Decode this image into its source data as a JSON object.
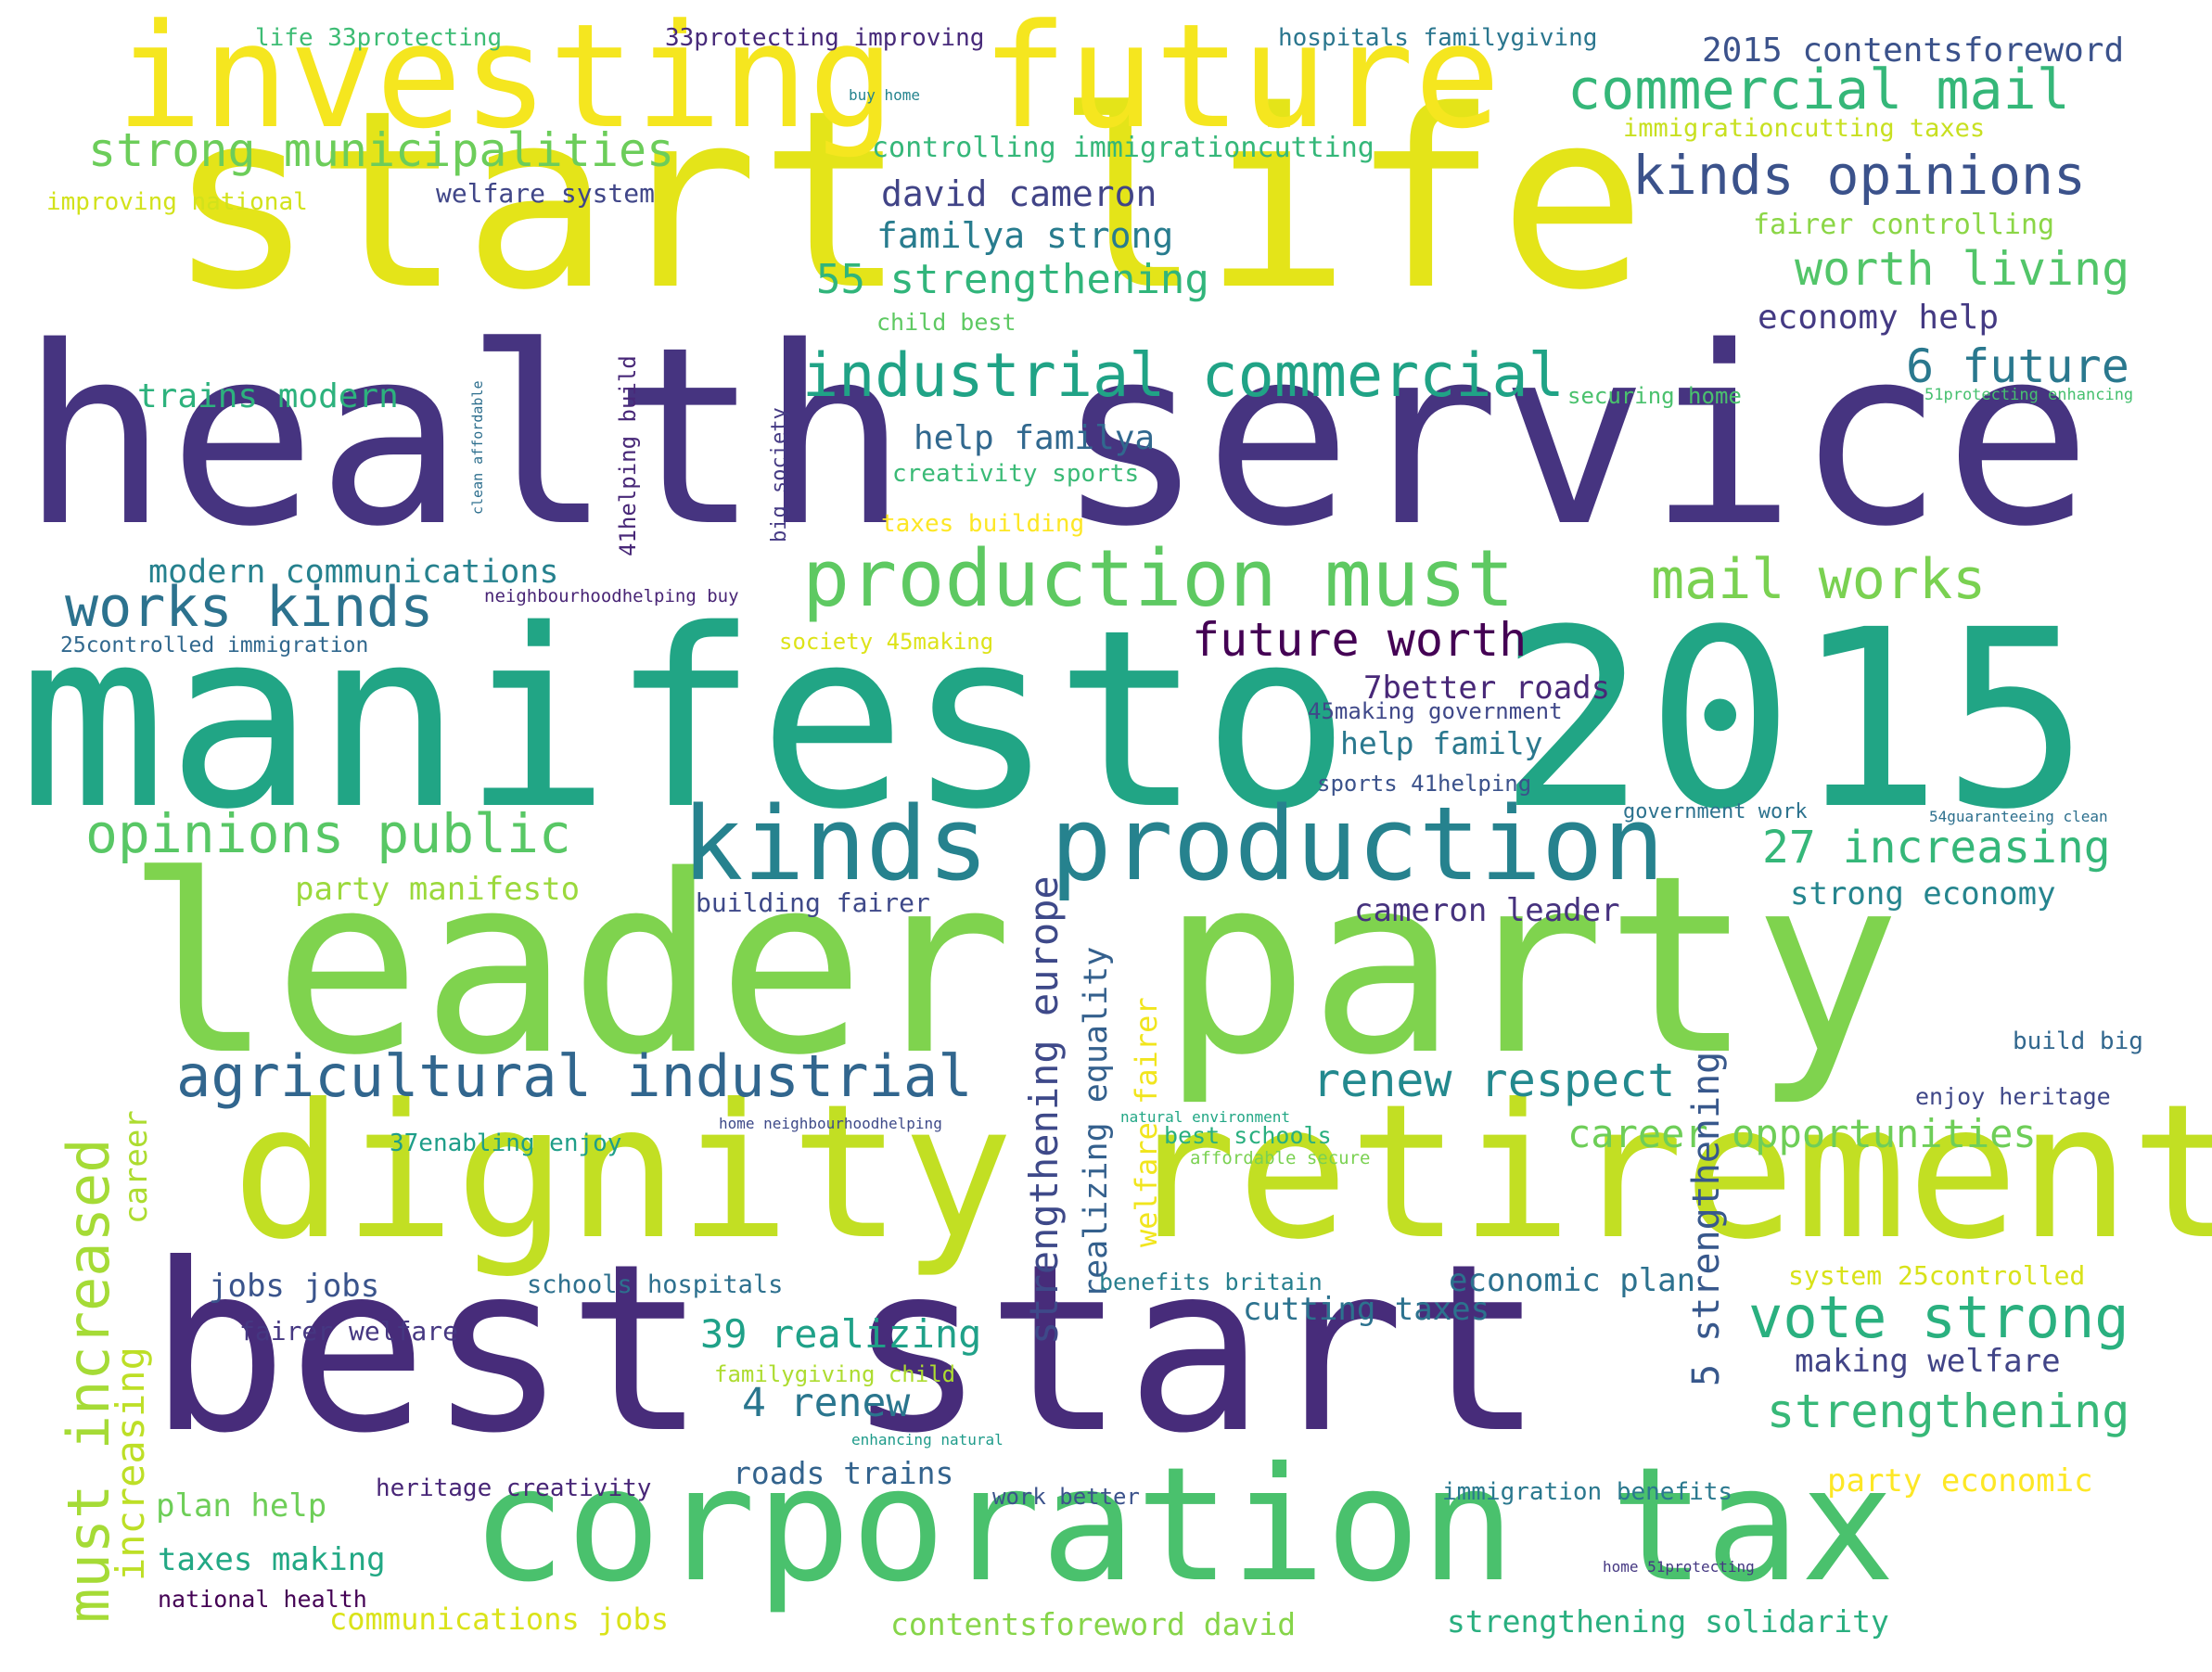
{
  "words": [
    {
      "text": "start life",
      "color": "#e4e419"
    },
    {
      "text": "health service",
      "color": "#463480"
    },
    {
      "text": "manifesto 2015",
      "color": "#21a585"
    },
    {
      "text": "leader party",
      "color": "#7fd34e"
    },
    {
      "text": "investing future",
      "color": "#f5e61f"
    },
    {
      "text": "best start",
      "color": "#472c7a"
    },
    {
      "text": "dignity retirement",
      "color": "#c2df23"
    },
    {
      "text": "corporation tax",
      "color": "#4ac16d"
    },
    {
      "text": "production must",
      "color": "#5ec962"
    },
    {
      "text": "kinds production",
      "color": "#26828e"
    },
    {
      "text": "industrial commercial",
      "color": "#20a386"
    },
    {
      "text": "agricultural industrial",
      "color": "#31668e"
    },
    {
      "text": "commercial mail",
      "color": "#35b779"
    },
    {
      "text": "strong municipalities",
      "color": "#6ccd5a"
    },
    {
      "text": "kinds opinions",
      "color": "#3b528b"
    },
    {
      "text": "opinions public",
      "color": "#58c765"
    },
    {
      "text": "works kinds",
      "color": "#2c728e"
    },
    {
      "text": "mail works",
      "color": "#7ad151"
    },
    {
      "text": "vote strong",
      "color": "#2ab07f"
    },
    {
      "text": "must increased",
      "color": "#a5db36"
    },
    {
      "text": "worth living",
      "color": "#52c569"
    },
    {
      "text": "renew respect",
      "color": "#23898e"
    },
    {
      "text": "future worth",
      "color": "#440154"
    },
    {
      "text": "27 increasing",
      "color": "#35b779"
    },
    {
      "text": "6 future",
      "color": "#2a788e"
    },
    {
      "text": "strengthening",
      "color": "#37b878"
    },
    {
      "text": "55 strengthening",
      "color": "#31b57b"
    },
    {
      "text": "career opportunities",
      "color": "#6ece58"
    },
    {
      "text": "39 realizing",
      "color": "#1fa188"
    },
    {
      "text": "4 renew",
      "color": "#2a768e"
    },
    {
      "text": "5 strengthening",
      "color": "#38588c"
    },
    {
      "text": "increasing",
      "color": "#bddf26"
    },
    {
      "text": "strengthening europe",
      "color": "#3e4989"
    },
    {
      "text": "realizing equality",
      "color": "#34608d"
    },
    {
      "text": "welfare fairer",
      "color": "#f1e51d"
    },
    {
      "text": "david cameron",
      "color": "#414487"
    },
    {
      "text": "familya strong",
      "color": "#287c8e"
    },
    {
      "text": "2015 contentsforeword",
      "color": "#3b528b"
    },
    {
      "text": "economy help",
      "color": "#443a83"
    },
    {
      "text": "help familya",
      "color": "#31688e"
    },
    {
      "text": "trains modern",
      "color": "#2db27d"
    },
    {
      "text": "modern communications",
      "color": "#26818e"
    },
    {
      "text": "7better roads",
      "color": "#482878"
    },
    {
      "text": "help family",
      "color": "#2a788e"
    },
    {
      "text": "party manifesto",
      "color": "#9bd93c"
    },
    {
      "text": "cameron leader",
      "color": "#46327e"
    },
    {
      "text": "strong economy",
      "color": "#25858e"
    },
    {
      "text": "career",
      "color": "#addc30"
    },
    {
      "text": "jobs jobs",
      "color": "#3a548c"
    },
    {
      "text": "cutting taxes",
      "color": "#2c728e"
    },
    {
      "text": "economic plan",
      "color": "#2c718e"
    },
    {
      "text": "making welfare",
      "color": "#414487"
    },
    {
      "text": "plan help",
      "color": "#6ece58"
    },
    {
      "text": "taxes making",
      "color": "#22a884"
    },
    {
      "text": "party economic",
      "color": "#fde725"
    },
    {
      "text": "communications jobs",
      "color": "#dae319"
    },
    {
      "text": "contentsforeword david",
      "color": "#86d549"
    },
    {
      "text": "strengthening solidarity",
      "color": "#29af7f"
    },
    {
      "text": "roads trains",
      "color": "#33638d"
    },
    {
      "text": "fairer welfare",
      "color": "#453781"
    },
    {
      "text": "national health",
      "color": "#440154"
    },
    {
      "text": "system 25controlled",
      "color": "#d8e219"
    },
    {
      "text": "fairer controlling",
      "color": "#8bd646"
    },
    {
      "text": "controlling immigrationcutting",
      "color": "#35b779"
    },
    {
      "text": "welfare system",
      "color": "#404688"
    },
    {
      "text": "immigrationcutting taxes",
      "color": "#c8e020"
    },
    {
      "text": "hospitals familygiving",
      "color": "#2a768e"
    },
    {
      "text": "life 33protecting",
      "color": "#3dbc74"
    },
    {
      "text": "33protecting improving",
      "color": "#472a7a"
    },
    {
      "text": "improving national",
      "color": "#d2e21b"
    },
    {
      "text": "child best",
      "color": "#5ec962"
    },
    {
      "text": "securing home",
      "color": "#4ac16d"
    },
    {
      "text": "51protecting enhancing",
      "color": "#46c06f"
    },
    {
      "text": "creativity sports",
      "color": "#3aba76"
    },
    {
      "text": "taxes building",
      "color": "#fde725"
    },
    {
      "text": "society 45making",
      "color": "#dde318"
    },
    {
      "text": "25controlled immigration",
      "color": "#31688e"
    },
    {
      "text": "neighbourhoodhelping buy",
      "color": "#482475"
    },
    {
      "text": "45making government",
      "color": "#3f4889"
    },
    {
      "text": "sports 41helping",
      "color": "#3b528b"
    },
    {
      "text": "government work",
      "color": "#2c728e"
    },
    {
      "text": "54guaranteeing clean",
      "color": "#2d708e"
    },
    {
      "text": "building fairer",
      "color": "#3e4989"
    },
    {
      "text": "schools hospitals",
      "color": "#2d708e"
    },
    {
      "text": "benefits britain",
      "color": "#277f8e"
    },
    {
      "text": "familygiving child",
      "color": "#addc30"
    },
    {
      "text": "heritage creativity",
      "color": "#482677"
    },
    {
      "text": "work better",
      "color": "#3b528b"
    },
    {
      "text": "immigration benefits",
      "color": "#2a788e"
    },
    {
      "text": "enhancing natural",
      "color": "#1e9b8a"
    },
    {
      "text": "home 51protecting",
      "color": "#453882"
    },
    {
      "text": "build big",
      "color": "#31678e"
    },
    {
      "text": "enjoy heritage",
      "color": "#3f4788"
    },
    {
      "text": "natural environment",
      "color": "#22a785"
    },
    {
      "text": "best schools",
      "color": "#29af7f"
    },
    {
      "text": "affordable secure",
      "color": "#7ad151"
    },
    {
      "text": "home neighbourhoodhelping",
      "color": "#3e4a89"
    },
    {
      "text": "37enabling enjoy",
      "color": "#1f9e89"
    },
    {
      "text": "buy home",
      "color": "#25848e"
    },
    {
      "text": "41helping build",
      "color": "#482878"
    },
    {
      "text": "big society",
      "color": "#443983"
    },
    {
      "text": "clean affordable",
      "color": "#2e6f8e"
    }
  ]
}
